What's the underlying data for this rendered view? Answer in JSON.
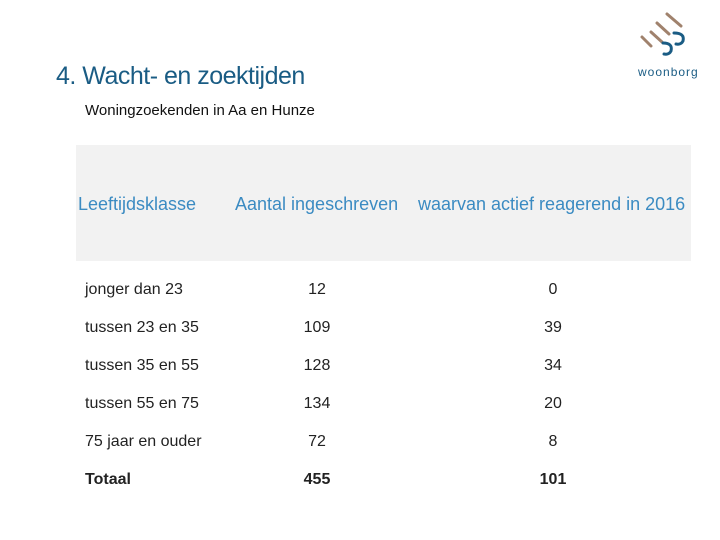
{
  "header": {
    "title": "4. Wacht- en zoektijden",
    "subtitle": "Woningzoekenden in Aa en Hunze"
  },
  "logo": {
    "text": "woonborg"
  },
  "table": {
    "headers": [
      "Leeftijdsklasse",
      "Aantal ingeschreven",
      "waarvan actief reagerend in 2016"
    ],
    "rows": [
      [
        "jonger dan 23",
        "12",
        "0"
      ],
      [
        "tussen 23 en 35",
        "109",
        "39"
      ],
      [
        "tussen 35 en 55",
        "128",
        "34"
      ],
      [
        "tussen 55 en 75",
        "134",
        "20"
      ],
      [
        "75 jaar en ouder",
        "72",
        "8"
      ]
    ],
    "total": [
      "Totaal",
      "455",
      "101"
    ]
  },
  "colors": {
    "title": "#1a5c84",
    "header_text": "#3b8bc2",
    "header_background": "#f2f2f2",
    "logo_strokes": "#a0826d"
  }
}
